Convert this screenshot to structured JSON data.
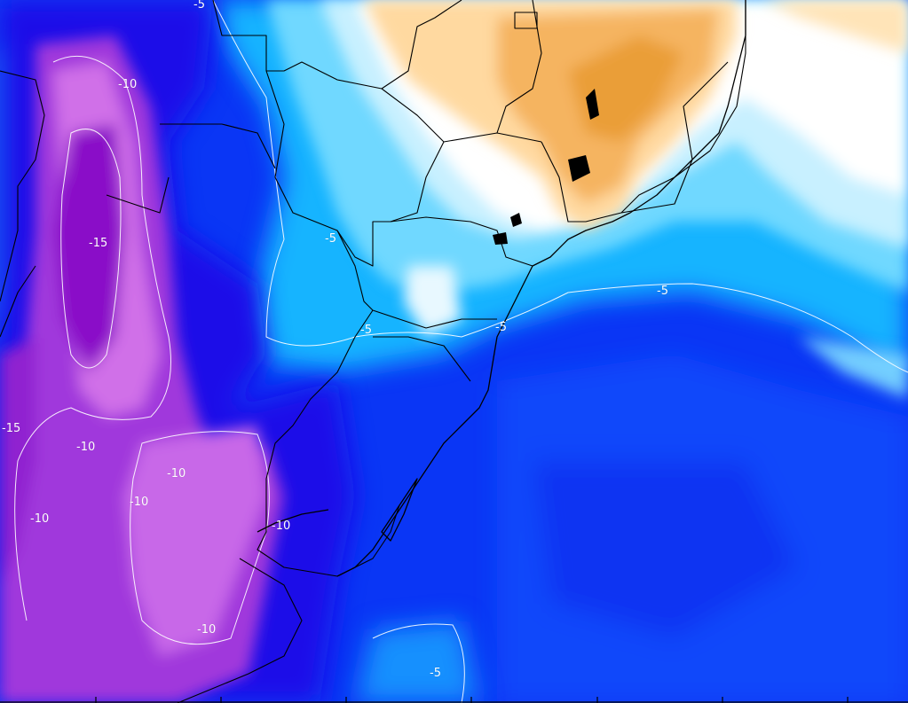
{
  "map": {
    "contour_labels": [
      {
        "id": "lbl-n5-top",
        "text": "-5"
      },
      {
        "id": "lbl-n10-andes-top",
        "text": "-10"
      },
      {
        "id": "lbl-n15-andes",
        "text": "-15"
      },
      {
        "id": "lbl-n15-left",
        "text": "-15"
      },
      {
        "id": "lbl-n5-parana",
        "text": "-5"
      },
      {
        "id": "lbl-n5-mid",
        "text": "-5"
      },
      {
        "id": "lbl-n5-sc",
        "text": "-5"
      },
      {
        "id": "lbl-n5-ocean-east",
        "text": "-5"
      },
      {
        "id": "lbl-n10-a",
        "text": "-10"
      },
      {
        "id": "lbl-n10-b",
        "text": "-10"
      },
      {
        "id": "lbl-n10-c",
        "text": "-10"
      },
      {
        "id": "lbl-n10-d",
        "text": "-10"
      },
      {
        "id": "lbl-n10-e",
        "text": "-10"
      },
      {
        "id": "lbl-n10-f",
        "text": "-10"
      },
      {
        "id": "lbl-n5-bottom",
        "text": "-5"
      }
    ],
    "colors": {
      "violet_core": "#8a0fc8",
      "violet": "#b040e0",
      "magenta": "#d070e8",
      "deep_blue": "#1a10e8",
      "blue": "#0038ff",
      "mid_blue": "#1070ff",
      "cyan": "#18b8ff",
      "light_cyan": "#70d8ff",
      "pale_cyan": "#c8f0ff",
      "white": "#ffffff",
      "light_orange": "#ffd9a0",
      "orange": "#f5b460",
      "dark_orange": "#e89a30"
    }
  }
}
